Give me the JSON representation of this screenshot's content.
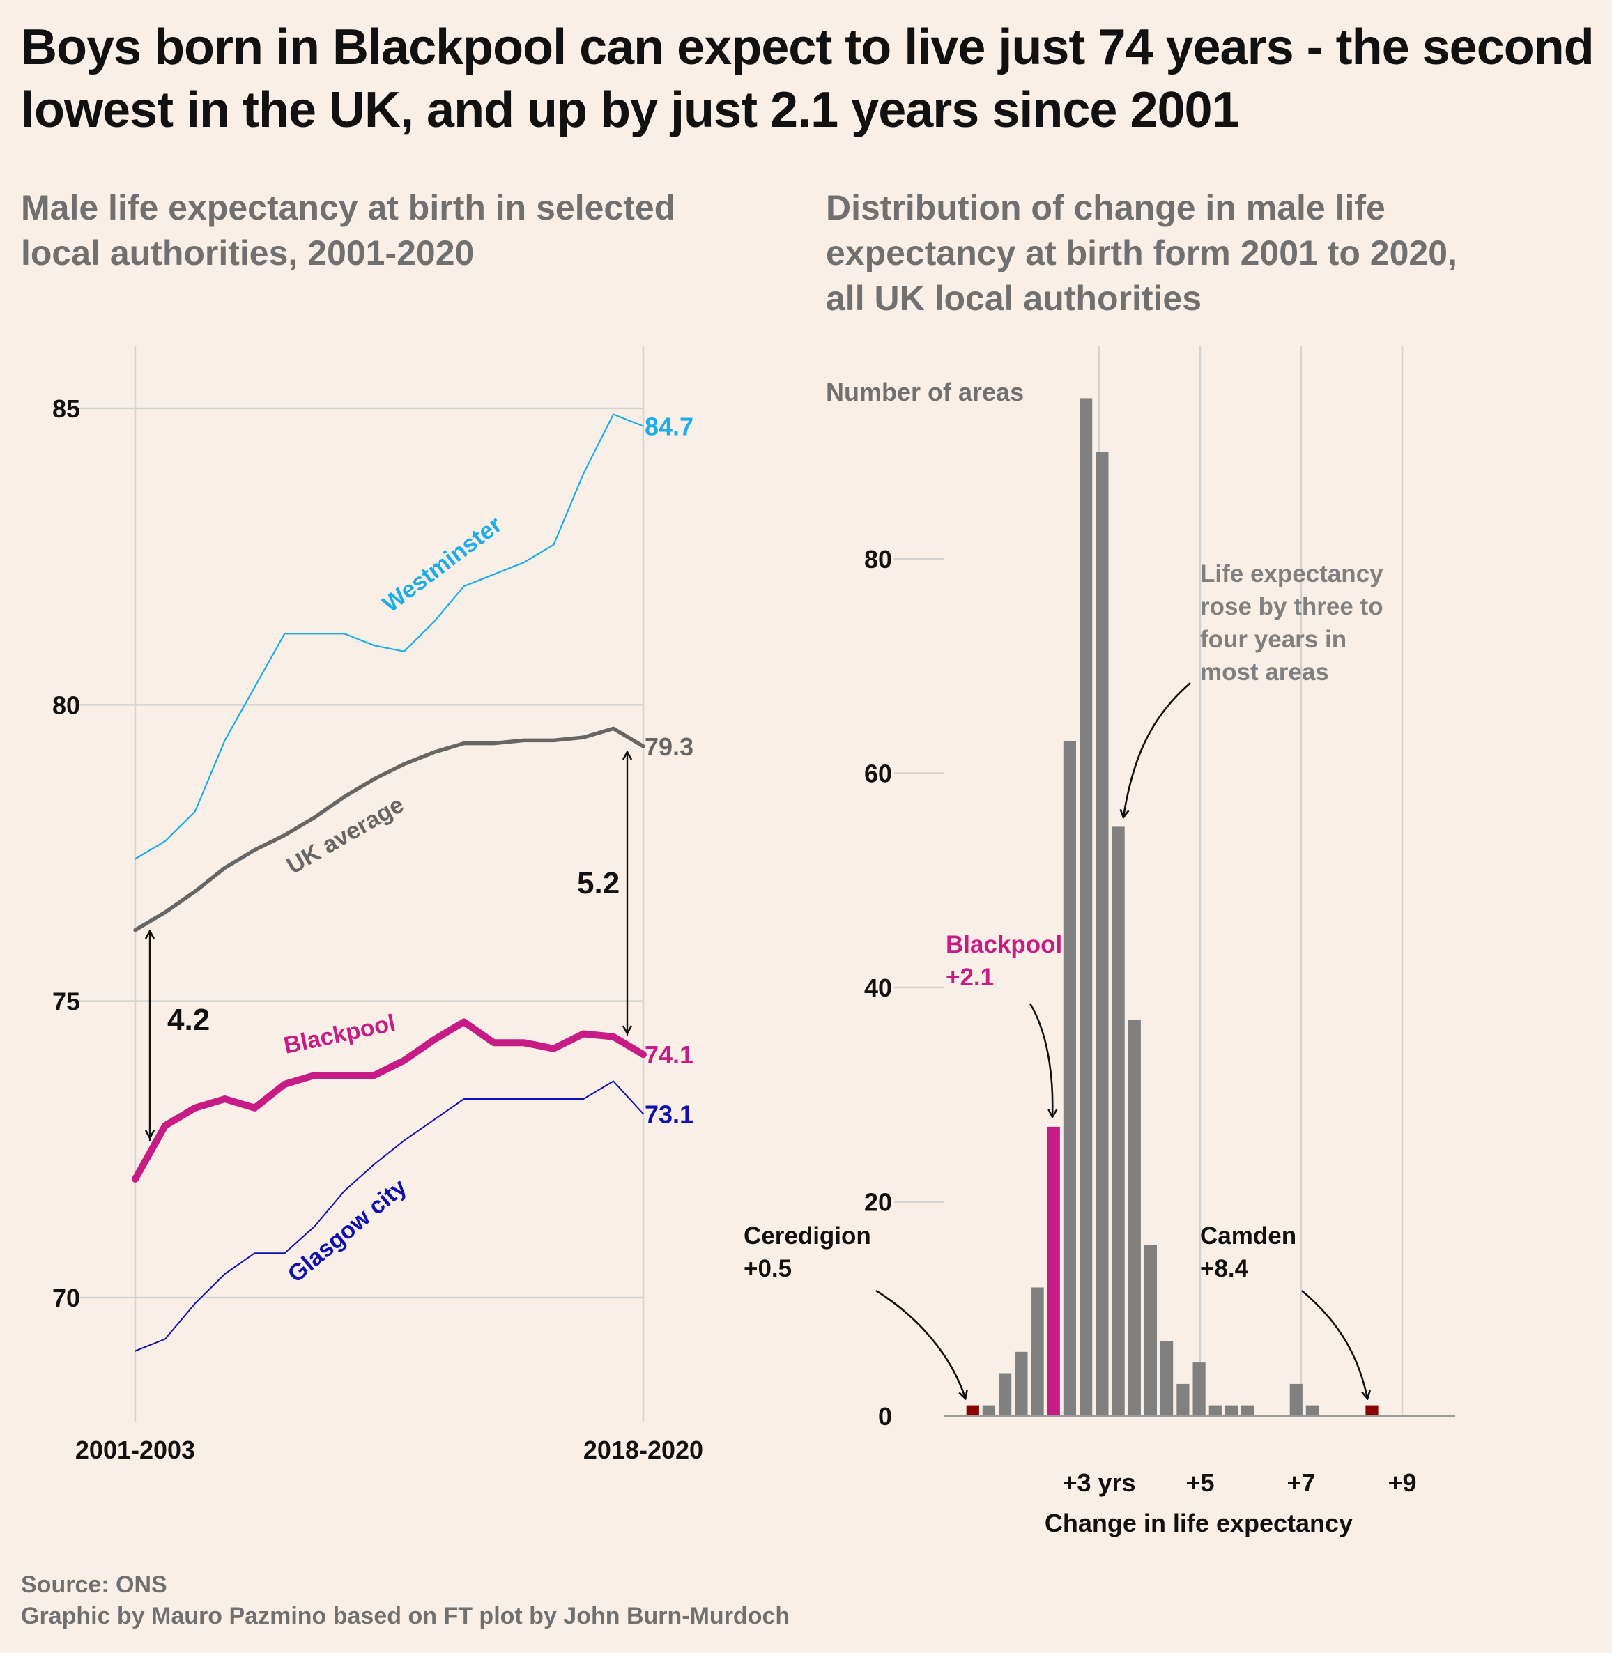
{
  "title": {
    "line1": "Boys born in Blackpool can expect to live just 74 years - the second",
    "line2": "lowest in the UK, and up by just 2.1 years since 2001"
  },
  "colors": {
    "background": "#f9efe6",
    "westminster": "#1aaee8",
    "uk_average": "#666666",
    "blackpool": "#c71b86",
    "glasgow": "#1010b0",
    "bars": "#808080",
    "outlier_bars": "#8b0000",
    "grid": "#d3d3d3"
  },
  "chart_data": [
    {
      "type": "line",
      "title": "Male life expectancy at birth in selected local authorities, 2001-2020",
      "title_lines": [
        "Male life expectancy at birth in selected",
        "local authorities, 2001-2020"
      ],
      "x_tick_labels": [
        "2001-2003",
        "2018-2020"
      ],
      "y_ticks": [
        70,
        75,
        80,
        85
      ],
      "ylim": [
        68,
        86
      ],
      "grid": true,
      "series": [
        {
          "name": "Westminster",
          "values": [
            77.4,
            77.7,
            78.2,
            79.4,
            80.3,
            81.2,
            81.2,
            81.2,
            81.0,
            80.9,
            81.4,
            82.0,
            82.2,
            82.4,
            82.7,
            83.9,
            84.9,
            84.7
          ],
          "end_label": "84.7"
        },
        {
          "name": "UK average",
          "values": [
            76.2,
            76.5,
            76.85,
            77.25,
            77.55,
            77.8,
            78.1,
            78.45,
            78.75,
            79.0,
            79.2,
            79.35,
            79.35,
            79.4,
            79.4,
            79.45,
            79.6,
            79.3
          ],
          "end_label": "79.3"
        },
        {
          "name": "Blackpool",
          "values": [
            72.0,
            72.9,
            73.2,
            73.35,
            73.2,
            73.6,
            73.75,
            73.75,
            73.75,
            74.0,
            74.35,
            74.65,
            74.3,
            74.3,
            74.2,
            74.45,
            74.4,
            74.1
          ],
          "end_label": "74.1"
        },
        {
          "name": "Glasgow city",
          "values": [
            69.1,
            69.3,
            69.9,
            70.4,
            70.75,
            70.75,
            71.2,
            71.8,
            72.25,
            72.65,
            73.0,
            73.35,
            73.35,
            73.35,
            73.35,
            73.35,
            73.65,
            73.1
          ],
          "end_label": "73.1"
        }
      ],
      "annotations": {
        "gap_2001": "4.2",
        "gap_2020": "5.2"
      }
    },
    {
      "type": "bar",
      "title": "Distribution of change in male life expectancy at birth form 2001 to 2020, all UK local authorities",
      "title_lines": [
        "Distribution of change in male life",
        "expectancy at birth form 2001 to 2020,",
        "all UK local authorities"
      ],
      "ylabel": "Number of areas",
      "xlabel": "Change in life expectancy",
      "x_ticks": [
        3,
        5,
        7,
        9
      ],
      "x_tick_labels": [
        "+3 yrs",
        "+5",
        "+7",
        "+9"
      ],
      "y_ticks": [
        0,
        20,
        40,
        60,
        80
      ],
      "ylim": [
        0,
        95
      ],
      "bin_width": 0.32,
      "bins": [
        {
          "x": 0.5,
          "count": 1,
          "highlight": "outlier"
        },
        {
          "x": 0.82,
          "count": 1
        },
        {
          "x": 1.14,
          "count": 4
        },
        {
          "x": 1.46,
          "count": 6
        },
        {
          "x": 1.78,
          "count": 12
        },
        {
          "x": 2.1,
          "count": 27,
          "highlight": "blackpool"
        },
        {
          "x": 2.42,
          "count": 63
        },
        {
          "x": 2.74,
          "count": 95
        },
        {
          "x": 3.06,
          "count": 90
        },
        {
          "x": 3.38,
          "count": 55
        },
        {
          "x": 3.7,
          "count": 37
        },
        {
          "x": 4.02,
          "count": 16
        },
        {
          "x": 4.34,
          "count": 7
        },
        {
          "x": 4.66,
          "count": 3
        },
        {
          "x": 4.98,
          "count": 5
        },
        {
          "x": 5.3,
          "count": 1
        },
        {
          "x": 5.62,
          "count": 1
        },
        {
          "x": 5.94,
          "count": 1
        },
        {
          "x": 6.9,
          "count": 3
        },
        {
          "x": 7.22,
          "count": 1
        },
        {
          "x": 8.4,
          "count": 1,
          "highlight": "outlier"
        }
      ],
      "annotations": {
        "most_areas": [
          "Life expectancy",
          "rose by three to",
          "four years in",
          "most areas"
        ],
        "blackpool": [
          "Blackpool",
          "+2.1"
        ],
        "ceredigion": [
          "Ceredigion",
          "+0.5"
        ],
        "camden": [
          "Camden",
          "+8.4"
        ]
      }
    }
  ],
  "footer": {
    "source": "Source: ONS",
    "credit": "Graphic by Mauro Pazmino based on FT plot by John Burn-Murdoch"
  }
}
